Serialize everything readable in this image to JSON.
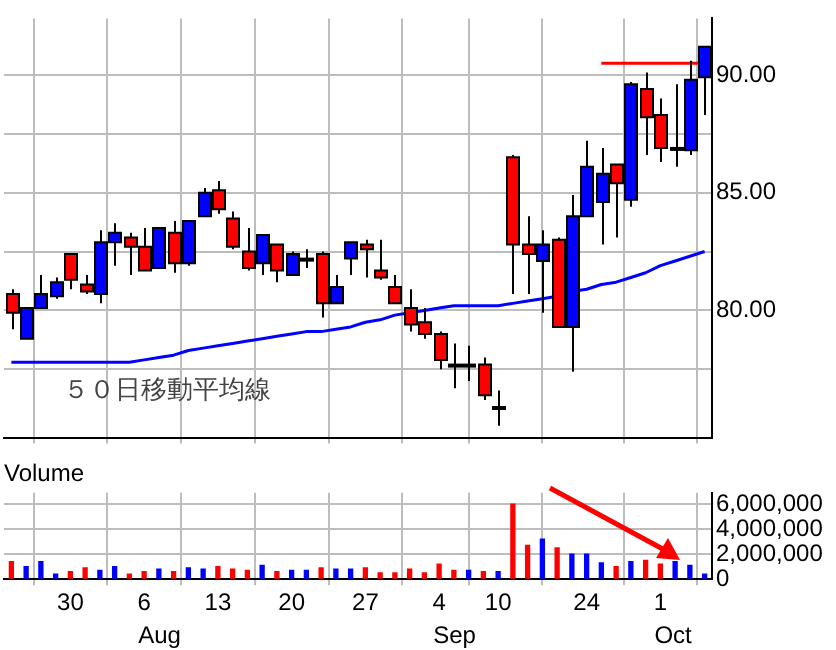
{
  "chart_data": [
    {
      "type": "candlestick",
      "tick_labels": "y",
      "grid": true,
      "categories": [
        null,
        null,
        null,
        null,
        "30",
        null,
        null,
        null,
        null,
        "6",
        null,
        null,
        null,
        null,
        "13",
        null,
        null,
        null,
        null,
        "20",
        null,
        null,
        null,
        null,
        "27",
        null,
        null,
        null,
        null,
        "4",
        null,
        null,
        null,
        "10",
        null,
        null,
        null,
        null,
        null,
        "24",
        null,
        null,
        null,
        null,
        "1",
        null,
        null,
        null
      ],
      "ohlc": [
        [
          80.7,
          80.9,
          79.2,
          79.9
        ],
        [
          78.8,
          80.1,
          78.8,
          80.1
        ],
        [
          80.1,
          81.5,
          80.1,
          80.7
        ],
        [
          80.6,
          81.4,
          80.5,
          81.2
        ],
        [
          82.4,
          82.4,
          80.9,
          81.3
        ],
        [
          81.1,
          81.5,
          80.7,
          80.8
        ],
        [
          80.7,
          83.4,
          80.3,
          82.9
        ],
        [
          82.9,
          83.7,
          81.9,
          83.3
        ],
        [
          83.1,
          83.3,
          81.5,
          82.7
        ],
        [
          82.7,
          83.5,
          81.7,
          81.7
        ],
        [
          81.8,
          83.5,
          81.8,
          83.5
        ],
        [
          83.3,
          83.8,
          81.6,
          82.0
        ],
        [
          82.0,
          83.8,
          81.9,
          83.8
        ],
        [
          84.0,
          85.2,
          84.0,
          85.0
        ],
        [
          85.1,
          85.5,
          84.1,
          84.3
        ],
        [
          83.9,
          84.2,
          82.6,
          82.7
        ],
        [
          82.5,
          83.5,
          81.7,
          81.8
        ],
        [
          82.0,
          83.2,
          81.5,
          83.2
        ],
        [
          82.8,
          82.8,
          81.2,
          81.7
        ],
        [
          81.5,
          82.5,
          81.5,
          82.4
        ],
        [
          82.2,
          82.6,
          81.8,
          82.2
        ],
        [
          82.4,
          82.5,
          79.7,
          80.3
        ],
        [
          80.3,
          81.5,
          80.3,
          81.0
        ],
        [
          82.2,
          82.9,
          81.5,
          82.9
        ],
        [
          82.8,
          83.0,
          81.4,
          82.6
        ],
        [
          81.7,
          83.0,
          81.3,
          81.4
        ],
        [
          81.0,
          81.5,
          80.3,
          80.3
        ],
        [
          80.1,
          80.9,
          79.1,
          79.4
        ],
        [
          79.5,
          80.1,
          78.8,
          79.0
        ],
        [
          79.0,
          79.1,
          77.5,
          77.9
        ],
        [
          77.7,
          78.6,
          76.7,
          77.7
        ],
        [
          77.7,
          78.5,
          77.0,
          77.7
        ],
        [
          77.7,
          78.0,
          76.2,
          76.4
        ],
        [
          75.9,
          76.6,
          75.1,
          75.9
        ],
        [
          86.5,
          86.6,
          80.7,
          82.8
        ],
        [
          82.8,
          84.0,
          80.7,
          82.4
        ],
        [
          82.1,
          83.4,
          79.9,
          82.8
        ],
        [
          83.0,
          83.1,
          79.3,
          79.3
        ],
        [
          79.3,
          84.9,
          77.4,
          84.0
        ],
        [
          84.0,
          87.2,
          84.0,
          86.1
        ],
        [
          84.6,
          86.9,
          82.8,
          85.8
        ],
        [
          86.2,
          86.2,
          83.1,
          85.4
        ],
        [
          84.7,
          89.7,
          84.4,
          89.6
        ],
        [
          89.4,
          90.1,
          86.6,
          88.2
        ],
        [
          88.3,
          89.0,
          86.3,
          86.9
        ],
        [
          86.9,
          89.6,
          86.1,
          86.9
        ],
        [
          86.8,
          90.6,
          86.6,
          89.8
        ],
        [
          89.9,
          91.2,
          88.3,
          91.2
        ]
      ],
      "colors": [
        "#ff0000",
        "#0000ff",
        "#0000ff",
        "#0000ff",
        "#ff0000",
        "#ff0000",
        "#0000ff",
        "#0000ff",
        "#ff0000",
        "#ff0000",
        "#0000ff",
        "#ff0000",
        "#0000ff",
        "#0000ff",
        "#ff0000",
        "#ff0000",
        "#ff0000",
        "#0000ff",
        "#ff0000",
        "#0000ff",
        "#000000",
        "#ff0000",
        "#0000ff",
        "#0000ff",
        "#ff0000",
        "#ff0000",
        "#ff0000",
        "#ff0000",
        "#ff0000",
        "#ff0000",
        "#000000",
        "#000000",
        "#ff0000",
        "#000000",
        "#ff0000",
        "#ff0000",
        "#0000ff",
        "#ff0000",
        "#0000ff",
        "#0000ff",
        "#0000ff",
        "#ff0000",
        "#0000ff",
        "#ff0000",
        "#ff0000",
        "#000000",
        "#0000ff",
        "#0000ff"
      ],
      "series": [
        {
          "type": "line",
          "name": "５０日移動平均線",
          "color": "#0000ff",
          "values": [
            77.8,
            77.8,
            77.8,
            77.8,
            77.8,
            77.8,
            77.8,
            77.8,
            77.8,
            77.9,
            78.0,
            78.1,
            78.3,
            78.4,
            78.5,
            78.6,
            78.7,
            78.8,
            78.9,
            79.0,
            79.1,
            79.1,
            79.2,
            79.3,
            79.5,
            79.6,
            79.8,
            79.9,
            80.0,
            80.1,
            80.2,
            80.2,
            80.2,
            80.2,
            80.3,
            80.4,
            80.5,
            80.6,
            80.8,
            80.9,
            81.1,
            81.2,
            81.4,
            81.6,
            81.9,
            82.1,
            82.3,
            82.5
          ]
        },
        {
          "type": "line",
          "color": "#ff0000",
          "values": [
            null,
            null,
            null,
            null,
            null,
            null,
            null,
            null,
            null,
            null,
            null,
            null,
            null,
            null,
            null,
            null,
            null,
            null,
            null,
            null,
            null,
            null,
            null,
            null,
            null,
            null,
            null,
            null,
            null,
            null,
            null,
            null,
            null,
            null,
            null,
            null,
            null,
            null,
            null,
            null,
            90.5,
            90.5,
            90.5,
            90.5,
            90.5,
            90.5,
            90.5,
            90.5
          ]
        }
      ],
      "ylim": [
        74.6,
        92.4
      ],
      "yticks": [
        {
          "value": 77.5,
          "label": null
        },
        {
          "value": 80,
          "label": "80.00"
        },
        {
          "value": 82.5,
          "label": null
        },
        {
          "value": 85,
          "label": "85.00"
        },
        {
          "value": 87.5,
          "label": null
        },
        {
          "value": 90,
          "label": "90.00"
        }
      ]
    },
    {
      "type": "bar",
      "title": "Volume",
      "grid": true,
      "categories": [
        null,
        null,
        null,
        null,
        "30",
        null,
        null,
        null,
        null,
        "6",
        null,
        null,
        null,
        null,
        "13",
        null,
        null,
        null,
        null,
        "20",
        null,
        null,
        null,
        null,
        "27",
        null,
        null,
        null,
        null,
        "4",
        null,
        null,
        null,
        "10",
        null,
        null,
        null,
        null,
        null,
        "24",
        null,
        null,
        null,
        null,
        "1",
        null,
        null,
        null
      ],
      "values": [
        1400000,
        1000000,
        1400000,
        400000,
        600000,
        900000,
        700000,
        1000000,
        400000,
        600000,
        800000,
        600000,
        900000,
        800000,
        1000000,
        800000,
        700000,
        1100000,
        600000,
        700000,
        700000,
        900000,
        800000,
        800000,
        900000,
        500000,
        500000,
        800000,
        500000,
        1200000,
        700000,
        700000,
        600000,
        600000,
        6000000,
        2700000,
        3200000,
        2500000,
        2000000,
        2000000,
        1300000,
        1000000,
        1400000,
        1500000,
        1200000,
        1400000,
        1100000,
        400000
      ],
      "colors": [
        "#ff0000",
        "#0000ff",
        "#0000ff",
        "#0000ff",
        "#ff0000",
        "#ff0000",
        "#0000ff",
        "#0000ff",
        "#ff0000",
        "#ff0000",
        "#0000ff",
        "#ff0000",
        "#0000ff",
        "#0000ff",
        "#ff0000",
        "#ff0000",
        "#ff0000",
        "#0000ff",
        "#ff0000",
        "#0000ff",
        "#0000ff",
        "#ff0000",
        "#0000ff",
        "#0000ff",
        "#ff0000",
        "#ff0000",
        "#ff0000",
        "#ff0000",
        "#ff0000",
        "#ff0000",
        "#ff0000",
        "#0000ff",
        "#ff0000",
        "#0000ff",
        "#ff0000",
        "#ff0000",
        "#0000ff",
        "#ff0000",
        "#0000ff",
        "#0000ff",
        "#0000ff",
        "#ff0000",
        "#0000ff",
        "#ff0000",
        "#ff0000",
        "#0000ff",
        "#0000ff",
        "#0000ff"
      ],
      "ylim": [
        0,
        6900000
      ],
      "yticks": [
        {
          "value": 0,
          "label": "0"
        },
        {
          "value": 2000000,
          "label": "2,000,000"
        },
        {
          "value": 4000000,
          "label": "4,000,000"
        },
        {
          "value": 6000000,
          "label": "6,000,000"
        }
      ],
      "annotations": [
        "Aug",
        "Sep",
        "Oct"
      ]
    }
  ]
}
